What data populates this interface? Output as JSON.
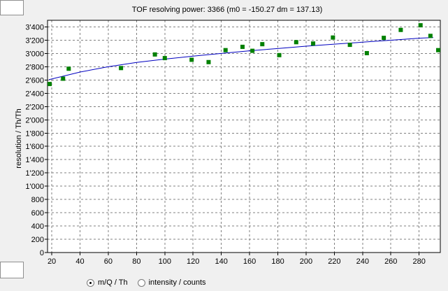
{
  "window": {
    "title": "TOF resolving power: 3366  (m0 = -150.27  dm = 137.13)"
  },
  "controls": {
    "radio_options": [
      {
        "label": "m/Q / Th",
        "checked": true
      },
      {
        "label": "intensity / counts",
        "checked": false
      }
    ]
  },
  "chart_data": {
    "type": "scatter",
    "title": "TOF resolving power: 3366  (m0 = -150.27  dm = 137.13)",
    "xlabel": "",
    "ylabel": "resolution / Th/Th",
    "xlim": [
      17,
      295
    ],
    "ylim": [
      0,
      3500
    ],
    "x_ticks": [
      20,
      40,
      60,
      80,
      100,
      120,
      140,
      160,
      180,
      200,
      220,
      240,
      260,
      280
    ],
    "y_ticks": [
      0,
      200,
      400,
      600,
      800,
      1000,
      1200,
      1400,
      1600,
      1800,
      2000,
      2200,
      2400,
      2600,
      2800,
      3000,
      3200,
      3400
    ],
    "x_tick_labels": [
      "20",
      "40",
      "60",
      "80",
      "100",
      "120",
      "140",
      "160",
      "180",
      "200",
      "220",
      "240",
      "260",
      "280"
    ],
    "y_tick_labels": [
      "0",
      "200",
      "400",
      "600",
      "800",
      "1'000",
      "1'200",
      "1'400",
      "1'600",
      "1'800",
      "2'000",
      "2'200",
      "2'400",
      "2'600",
      "2'800",
      "3'000",
      "3'200",
      "3'400"
    ],
    "grid": true,
    "series": [
      {
        "kind": "points",
        "color": "#008000",
        "x": [
          18,
          28,
          32,
          69,
          93,
          100,
          119,
          131,
          143,
          155,
          162,
          169,
          181,
          193,
          205,
          219,
          231,
          243,
          255,
          267,
          281,
          288,
          294
        ],
        "y": [
          2540,
          2620,
          2770,
          2780,
          2985,
          2930,
          2905,
          2870,
          3050,
          3100,
          3040,
          3140,
          2975,
          3170,
          3150,
          3240,
          3130,
          3005,
          3235,
          3355,
          3425,
          3265,
          3050
        ]
      },
      {
        "kind": "fit-line",
        "color": "#0000c0",
        "x": [
          18,
          40,
          60,
          80,
          100,
          120,
          140,
          160,
          180,
          200,
          220,
          240,
          260,
          280,
          290
        ],
        "y": [
          2605,
          2720,
          2800,
          2865,
          2915,
          2960,
          3000,
          3040,
          3075,
          3110,
          3140,
          3170,
          3200,
          3230,
          3240
        ]
      }
    ]
  }
}
